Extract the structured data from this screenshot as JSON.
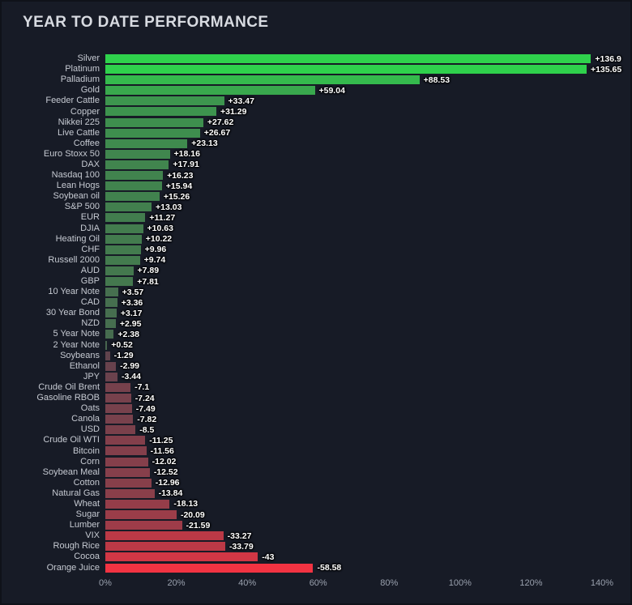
{
  "title": "YEAR TO DATE PERFORMANCE",
  "chart_data": {
    "type": "bar",
    "orientation": "horizontal",
    "title": "YEAR TO DATE PERFORMANCE",
    "xlabel": "",
    "ylabel": "",
    "xlim": [
      0,
      140
    ],
    "grid": false,
    "legend": false,
    "x_ticks": [
      {
        "value": 0,
        "label": "0%"
      },
      {
        "value": 20,
        "label": "20%"
      },
      {
        "value": 40,
        "label": "40%"
      },
      {
        "value": 60,
        "label": "60%"
      },
      {
        "value": 80,
        "label": "80%"
      },
      {
        "value": 100,
        "label": "100%"
      },
      {
        "value": 120,
        "label": "120%"
      },
      {
        "value": 140,
        "label": "140%"
      }
    ],
    "categories": [
      "Silver",
      "Platinum",
      "Palladium",
      "Gold",
      "Feeder Cattle",
      "Copper",
      "Nikkei 225",
      "Live Cattle",
      "Coffee",
      "Euro Stoxx 50",
      "DAX",
      "Nasdaq 100",
      "Lean Hogs",
      "Soybean oil",
      "S&P 500",
      "EUR",
      "DJIA",
      "Heating Oil",
      "CHF",
      "Russell 2000",
      "AUD",
      "GBP",
      "10 Year Note",
      "CAD",
      "30 Year Bond",
      "NZD",
      "5 Year Note",
      "2 Year Note",
      "Soybeans",
      "Ethanol",
      "JPY",
      "Crude Oil Brent",
      "Gasoline RBOB",
      "Oats",
      "Canola",
      "USD",
      "Crude Oil WTI",
      "Bitcoin",
      "Corn",
      "Soybean Meal",
      "Cotton",
      "Natural Gas",
      "Wheat",
      "Sugar",
      "Lumber",
      "VIX",
      "Rough Rice",
      "Cocoa",
      "Orange Juice"
    ],
    "values": [
      136.9,
      135.65,
      88.53,
      59.04,
      33.47,
      31.29,
      27.62,
      26.67,
      23.13,
      18.16,
      17.91,
      16.23,
      15.94,
      15.26,
      13.03,
      11.27,
      10.63,
      10.22,
      9.96,
      9.74,
      7.89,
      7.81,
      3.57,
      3.36,
      3.17,
      2.95,
      2.38,
      0.52,
      -1.29,
      -2.99,
      -3.44,
      -7.1,
      -7.24,
      -7.49,
      -7.82,
      -8.5,
      -11.25,
      -11.56,
      -12.02,
      -12.52,
      -12.96,
      -13.84,
      -18.13,
      -20.09,
      -21.59,
      -33.27,
      -33.79,
      -43,
      -58.58
    ],
    "colors": {
      "background": "#171b26",
      "positive_max": "#2fd24c",
      "positive_min": "#49604f",
      "negative_min": "#5a444e",
      "negative_max": "#f23342",
      "value_label": "#ffffff",
      "category_label": "#c6cad2",
      "tick_label": "#9aa1ae",
      "title": "#d8dbe1"
    }
  }
}
